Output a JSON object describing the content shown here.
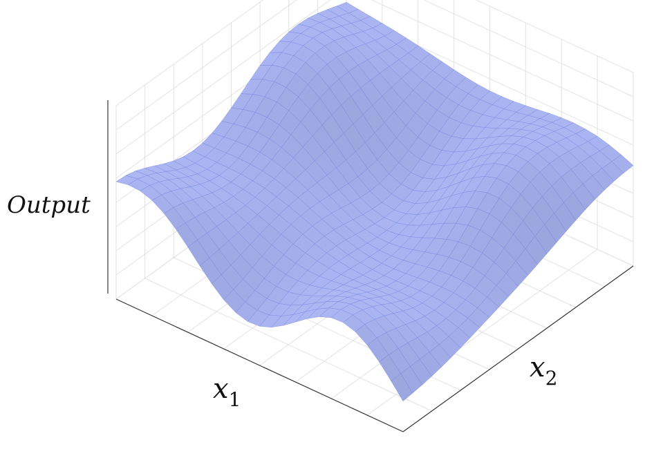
{
  "chart_data": {
    "type": "surface3d",
    "title": "",
    "xlabel": "x",
    "xlabel_subscript": "1",
    "ylabel": "x",
    "ylabel_subscript": "2",
    "zlabel": "Output",
    "grid": true,
    "ticks_visible": false,
    "surface_color": "#a9b4f2",
    "wire_color": "#5f6fd4",
    "box_grid_color": "#e2e2e2",
    "axis_color": "#333333",
    "mesh_resolution": [
      24,
      24
    ],
    "surface": {
      "description_kind": "sum-of-sinusoids",
      "components": [
        {
          "amp": 0.45,
          "fx": 1.0,
          "fy": 0.0,
          "px": 0.0,
          "py": 0.0
        },
        {
          "amp": 0.45,
          "fx": 0.0,
          "fy": 1.0,
          "px": 0.0,
          "py": 0.0
        },
        {
          "amp": 0.35,
          "fx": 1.0,
          "fy": 1.0,
          "px": 0.6,
          "py": 0.0
        },
        {
          "amp": -0.55,
          "fx": 0.0,
          "fy": 0.0,
          "px": 0.0,
          "py": 0.0
        }
      ]
    },
    "corner_heights": {
      "left": 0.35,
      "back": 0.95,
      "right": 0.45,
      "front": -0.7
    }
  }
}
